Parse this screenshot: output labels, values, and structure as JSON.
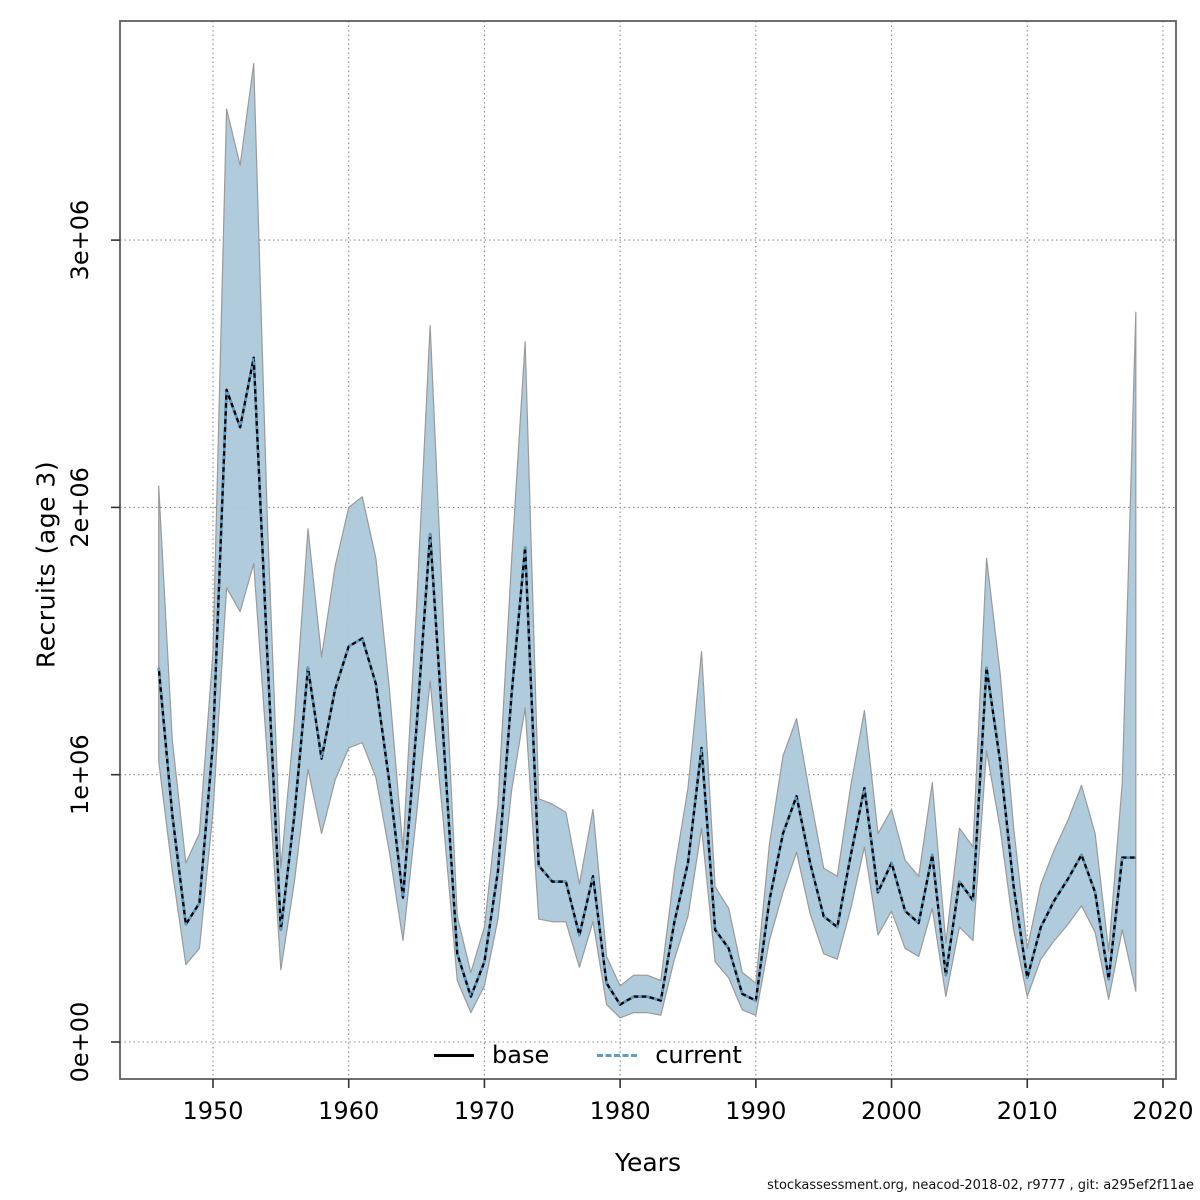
{
  "meta": {
    "footer": "stockassessment.org, neacod-2018-02, r9777 , git: a295ef2f11ae"
  },
  "legend": {
    "base_label": "base",
    "current_label": "current"
  },
  "colors": {
    "band_fill": "#abc8da",
    "band_edge": "#9a9a9a",
    "base_line": "#000000",
    "current_line": "#5b9ec9",
    "grid": "#8c8c8c",
    "border": "#5f5f5f",
    "tick": "#333333"
  },
  "chart_data": {
    "type": "line",
    "title": "",
    "xlabel": "Years",
    "ylabel": "Recruits (age 3)",
    "x_ticks": [
      1950,
      1960,
      1970,
      1980,
      1990,
      2000,
      2010,
      2020
    ],
    "y_ticks": [
      {
        "value": 0,
        "label": "0e+00"
      },
      {
        "value": 1000000,
        "label": "1e+06"
      },
      {
        "value": 2000000,
        "label": "2e+06"
      },
      {
        "value": 3000000,
        "label": "3e+06"
      }
    ],
    "ylim": [
      0,
      3820000
    ],
    "xlim": [
      1946,
      2018
    ],
    "grid": "dotted",
    "legend_position": "bottom-center",
    "years": [
      1946,
      1947,
      1948,
      1949,
      1950,
      1951,
      1952,
      1953,
      1954,
      1955,
      1956,
      1957,
      1958,
      1959,
      1960,
      1961,
      1962,
      1963,
      1964,
      1965,
      1966,
      1967,
      1968,
      1969,
      1970,
      1971,
      1972,
      1973,
      1974,
      1975,
      1976,
      1977,
      1978,
      1979,
      1980,
      1981,
      1982,
      1983,
      1984,
      1985,
      1986,
      1987,
      1988,
      1989,
      1990,
      1991,
      1992,
      1993,
      1994,
      1995,
      1996,
      1997,
      1998,
      1999,
      2000,
      2001,
      2002,
      2003,
      2004,
      2005,
      2006,
      2007,
      2008,
      2009,
      2010,
      2011,
      2012,
      2013,
      2014,
      2015,
      2016,
      2017,
      2018
    ],
    "series": [
      {
        "name": "base",
        "style": "solid",
        "color": "#000000",
        "values": [
          1400000,
          850000,
          440000,
          520000,
          1120000,
          2440000,
          2300000,
          2560000,
          1450000,
          420000,
          850000,
          1400000,
          1060000,
          1320000,
          1480000,
          1510000,
          1340000,
          970000,
          540000,
          1180000,
          1900000,
          1120000,
          330000,
          170000,
          300000,
          640000,
          1300000,
          1850000,
          660000,
          600000,
          600000,
          400000,
          620000,
          220000,
          140000,
          170000,
          170000,
          155000,
          450000,
          670000,
          1100000,
          420000,
          350000,
          180000,
          155000,
          530000,
          780000,
          920000,
          670000,
          470000,
          430000,
          700000,
          950000,
          560000,
          670000,
          490000,
          445000,
          700000,
          250000,
          600000,
          530000,
          1400000,
          1050000,
          580000,
          240000,
          430000,
          530000,
          610000,
          700000,
          560000,
          235000,
          690000,
          690000
        ]
      },
      {
        "name": "current",
        "style": "dashed",
        "color": "#5b9ec9",
        "values": [
          1400000,
          850000,
          440000,
          520000,
          1120000,
          2440000,
          2300000,
          2560000,
          1450000,
          420000,
          850000,
          1400000,
          1060000,
          1320000,
          1480000,
          1510000,
          1340000,
          970000,
          540000,
          1180000,
          1900000,
          1120000,
          330000,
          170000,
          300000,
          640000,
          1300000,
          1850000,
          660000,
          600000,
          600000,
          400000,
          620000,
          220000,
          140000,
          170000,
          170000,
          155000,
          450000,
          670000,
          1100000,
          420000,
          350000,
          180000,
          155000,
          530000,
          780000,
          920000,
          670000,
          470000,
          430000,
          700000,
          950000,
          560000,
          670000,
          490000,
          445000,
          700000,
          250000,
          600000,
          530000,
          1400000,
          1050000,
          580000,
          240000,
          430000,
          530000,
          610000,
          700000,
          560000,
          235000,
          690000,
          690000
        ]
      }
    ],
    "band": {
      "low": [
        1050000,
        640000,
        290000,
        350000,
        860000,
        1700000,
        1610000,
        1790000,
        1070000,
        270000,
        600000,
        1020000,
        780000,
        980000,
        1100000,
        1120000,
        990000,
        710000,
        380000,
        850000,
        1350000,
        810000,
        230000,
        110000,
        210000,
        460000,
        940000,
        1250000,
        460000,
        450000,
        450000,
        280000,
        450000,
        140000,
        90000,
        110000,
        110000,
        100000,
        310000,
        470000,
        800000,
        300000,
        240000,
        120000,
        100000,
        380000,
        560000,
        710000,
        480000,
        330000,
        310000,
        500000,
        730000,
        400000,
        490000,
        350000,
        320000,
        500000,
        170000,
        430000,
        380000,
        1090000,
        800000,
        420000,
        170000,
        310000,
        380000,
        440000,
        510000,
        410000,
        160000,
        420000,
        190000
      ],
      "high": [
        2080000,
        1130000,
        670000,
        780000,
        1460000,
        3490000,
        3280000,
        3660000,
        1960000,
        650000,
        1200000,
        1920000,
        1440000,
        1780000,
        2000000,
        2040000,
        1810000,
        1320000,
        720000,
        1630000,
        2680000,
        1540000,
        470000,
        260000,
        430000,
        890000,
        1800000,
        2620000,
        910000,
        890000,
        860000,
        590000,
        870000,
        320000,
        210000,
        250000,
        250000,
        230000,
        640000,
        950000,
        1460000,
        580000,
        500000,
        260000,
        220000,
        740000,
        1070000,
        1210000,
        920000,
        650000,
        620000,
        960000,
        1240000,
        780000,
        870000,
        680000,
        620000,
        970000,
        370000,
        800000,
        730000,
        1810000,
        1380000,
        800000,
        350000,
        590000,
        720000,
        830000,
        960000,
        780000,
        340000,
        970000,
        2730000
      ]
    }
  }
}
